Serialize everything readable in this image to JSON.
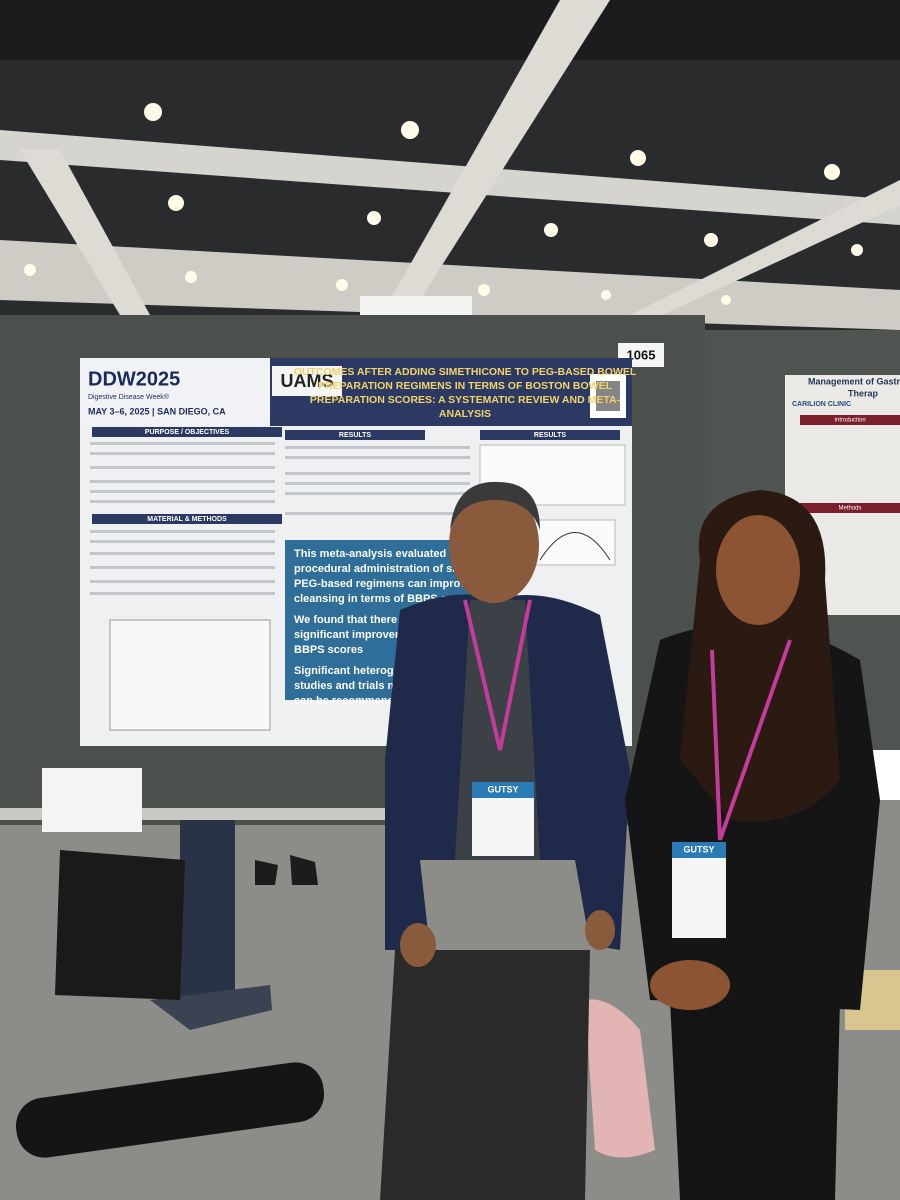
{
  "booth_number": "1065",
  "poster": {
    "logo": "DDW2025",
    "logo_subtitle": "Digestive Disease Week®",
    "dates": "MAY 3–6, 2025 | SAN DIEGO, CA",
    "institution": "UAMS",
    "title_lines": [
      "OUTCOMES AFTER ADDING SIMETHICONE TO PEG-BASED BOWEL",
      "PREPARATION REGIMENS IN TERMS OF BOSTON BOWEL",
      "PREPARATION SCORES: A SYSTEMATIC REVIEW AND META-",
      "ANALYSIS"
    ],
    "sections": [
      "PURPOSE / OBJECTIVES",
      "MATERIAL & METHODS",
      "RESULTS",
      "RESULTS"
    ],
    "highlight_lines": [
      "This meta-analysis evaluated whether pre-",
      "procedural administration of simethicone",
      "PEG-based regimens can improve bowel",
      "cleansing in terms of BBPS scores",
      "We found that there was a modest but",
      "significant improvement in terms of",
      "BBPS scores",
      "Significant heterogeneity",
      "studies and trials may be",
      "can be recommended fo"
    ]
  },
  "side_poster": {
    "title_lines": [
      "Management of Gastrointe",
      "Therap"
    ],
    "logo": "CARILION CLINIC",
    "sections": [
      "Introduction",
      "Methods"
    ]
  },
  "badges": [
    "GUTSY",
    "GUTSY"
  ]
}
